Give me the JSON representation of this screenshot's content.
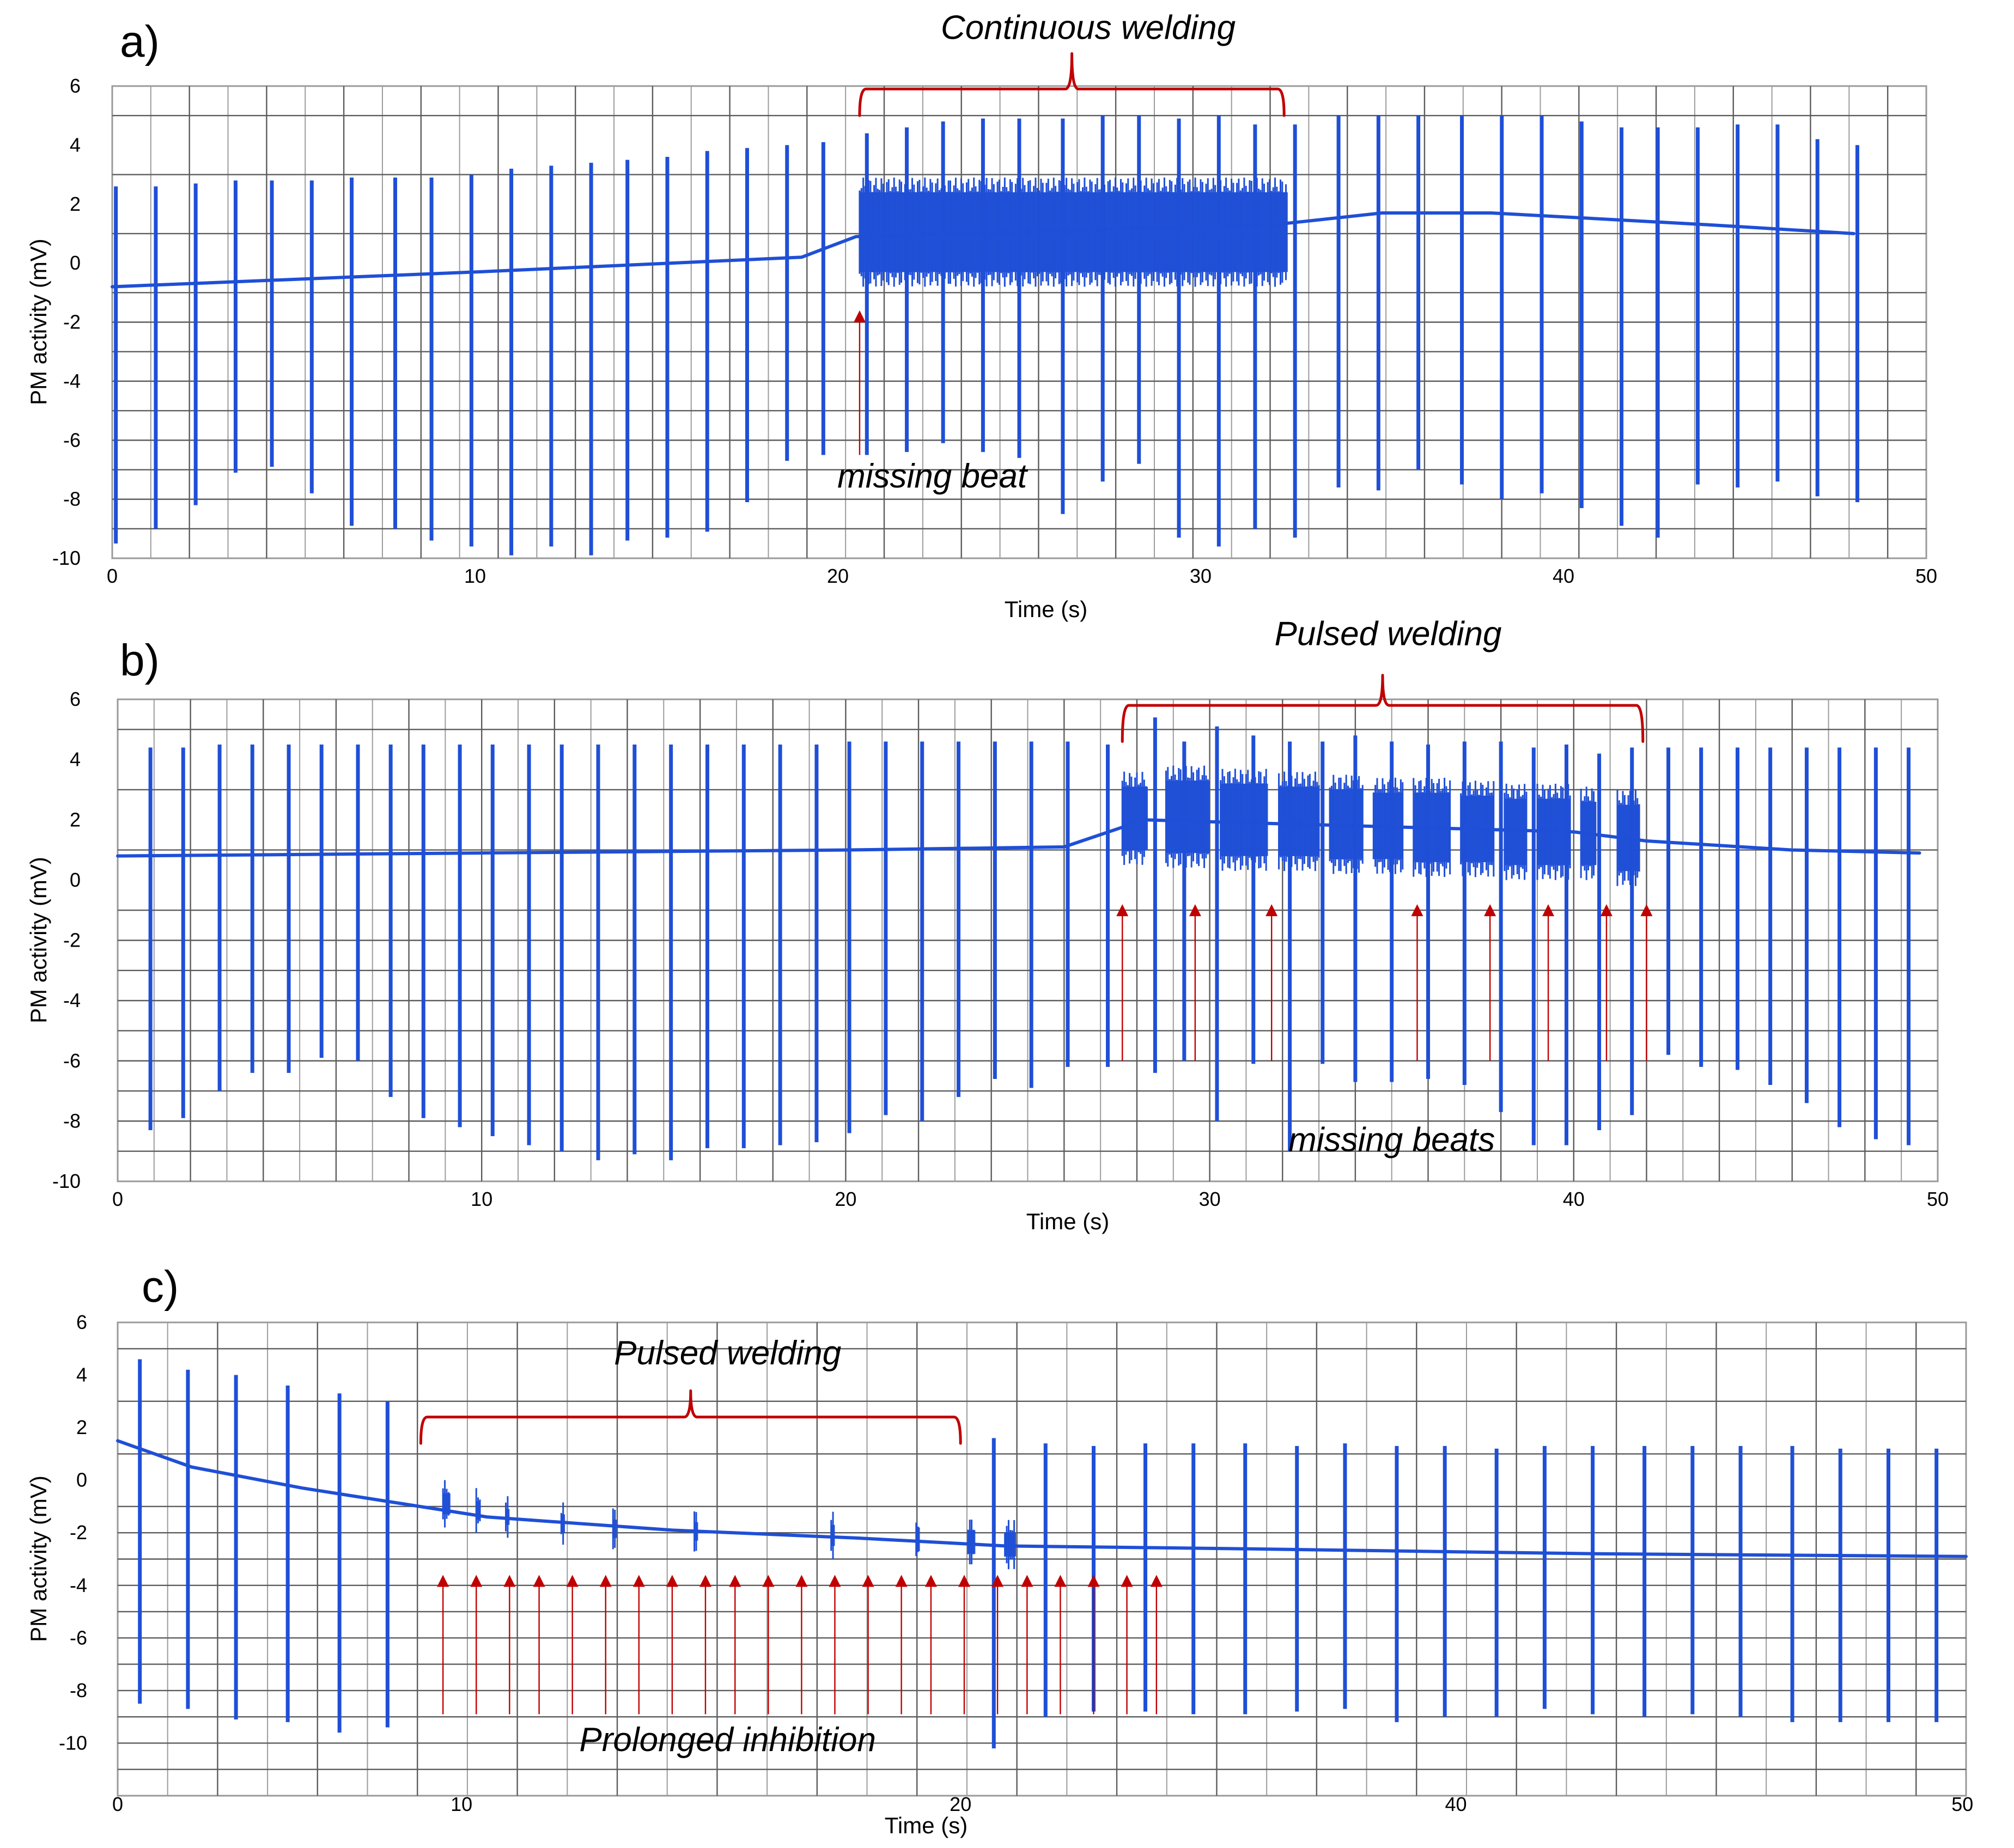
{
  "figure": {
    "style": {
      "trace_color": "#1F4FD6",
      "annotation_color": "#C00000"
    },
    "axis_common": {
      "ylabel": "PM activity (mV)",
      "xlabel": "Time (s)"
    }
  },
  "chart_data": [
    {
      "panel": "a)",
      "type": "line",
      "xlabel": "Time (s)",
      "ylabel": "PM activity (mV)",
      "xlim": [
        0,
        50
      ],
      "ylim": [
        -10,
        6
      ],
      "xticks": [
        0,
        10,
        20,
        30,
        40,
        50
      ],
      "yticks": [
        6,
        4,
        2,
        0,
        -2,
        -4,
        -6,
        -8,
        -10
      ],
      "vertical_grid_count": 47,
      "horizontal_grid": [
        5,
        3,
        1,
        -1,
        -2,
        -3,
        -4,
        -5,
        -6,
        -7,
        -8,
        -9
      ],
      "baseline": [
        [
          0,
          -0.8
        ],
        [
          10,
          -0.3
        ],
        [
          19,
          0.2
        ],
        [
          20.5,
          0.9
        ],
        [
          26,
          1.1
        ],
        [
          32,
          1.3
        ],
        [
          35,
          1.7
        ],
        [
          38,
          1.7
        ],
        [
          44,
          1.3
        ],
        [
          48,
          1.0
        ]
      ],
      "beats": [
        [
          0.1,
          2.6,
          -9.5
        ],
        [
          1.2,
          2.6,
          -9.0
        ],
        [
          2.3,
          2.7,
          -8.2
        ],
        [
          3.4,
          2.8,
          -7.1
        ],
        [
          4.4,
          2.8,
          -6.9
        ],
        [
          5.5,
          2.8,
          -7.8
        ],
        [
          6.6,
          2.9,
          -8.9
        ],
        [
          7.8,
          2.9,
          -9.0
        ],
        [
          8.8,
          2.9,
          -9.4
        ],
        [
          9.9,
          3.0,
          -9.6
        ],
        [
          11.0,
          3.2,
          -9.9
        ],
        [
          12.1,
          3.3,
          -9.6
        ],
        [
          13.2,
          3.4,
          -9.9
        ],
        [
          14.2,
          3.5,
          -9.4
        ],
        [
          15.3,
          3.6,
          -9.3
        ],
        [
          16.4,
          3.8,
          -9.1
        ],
        [
          17.5,
          3.9,
          -8.1
        ],
        [
          18.6,
          4.0,
          -6.7
        ],
        [
          19.6,
          4.1,
          -6.5
        ],
        [
          20.8,
          4.4,
          -6.5
        ],
        [
          21.9,
          4.6,
          -6.4
        ],
        [
          22.9,
          4.8,
          -6.1
        ],
        [
          24.0,
          4.9,
          -6.4
        ],
        [
          25.0,
          4.9,
          -6.6
        ],
        [
          26.2,
          4.9,
          -8.5
        ],
        [
          27.3,
          5.0,
          -7.4
        ],
        [
          28.3,
          5.0,
          -6.8
        ],
        [
          29.4,
          4.9,
          -9.3
        ],
        [
          30.5,
          5.0,
          -9.6
        ],
        [
          31.5,
          4.7,
          -9.0
        ],
        [
          32.6,
          4.7,
          -9.3
        ],
        [
          33.8,
          5.0,
          -7.6
        ],
        [
          34.9,
          5.0,
          -7.7
        ],
        [
          36.0,
          5.0,
          -7.0
        ],
        [
          37.2,
          5.0,
          -7.5
        ],
        [
          38.3,
          5.0,
          -8.0
        ],
        [
          39.4,
          5.0,
          -7.8
        ],
        [
          40.5,
          4.8,
          -8.3
        ],
        [
          41.6,
          4.6,
          -8.9
        ],
        [
          42.6,
          4.6,
          -9.3
        ],
        [
          43.7,
          4.6,
          -7.5
        ],
        [
          44.8,
          4.7,
          -7.6
        ],
        [
          45.9,
          4.7,
          -7.4
        ],
        [
          47.0,
          4.2,
          -7.9
        ],
        [
          48.1,
          4.0,
          -8.1
        ]
      ],
      "bursts": [
        {
          "start": 20.6,
          "end": 32.4,
          "high": 2.4,
          "low": -0.3,
          "spacing": 0.05
        }
      ],
      "annotations": [
        {
          "text": "Continuous welding",
          "x": 26.9,
          "y": 7.6,
          "role": "label"
        },
        {
          "text": "missing beat",
          "x": 22.6,
          "y": -7.6,
          "role": "label"
        }
      ],
      "brackets": [
        {
          "x_start": 20.6,
          "x_end": 32.3,
          "y": 5.9,
          "height": 0.9,
          "tip": 1.2
        }
      ],
      "arrows": [
        {
          "x": 20.6,
          "y_from": -6.5,
          "y_to": -1.6
        }
      ]
    },
    {
      "panel": "b)",
      "type": "line",
      "xlabel": "Time (s)",
      "ylabel": "PM activity (mV)",
      "xlim": [
        0,
        50
      ],
      "ylim": [
        -10,
        6
      ],
      "xticks": [
        0,
        10,
        20,
        30,
        40,
        50
      ],
      "yticks": [
        6,
        4,
        2,
        0,
        -2,
        -4,
        -6,
        -8,
        -10
      ],
      "vertical_grid_count": 50,
      "horizontal_grid": [
        5,
        3,
        1,
        -1,
        -2,
        -3,
        -4,
        -5,
        -6,
        -7,
        -8,
        -9
      ],
      "baseline": [
        [
          0,
          0.8
        ],
        [
          10,
          0.9
        ],
        [
          20,
          1.0
        ],
        [
          26,
          1.1
        ],
        [
          28.2,
          2.0
        ],
        [
          34,
          1.8
        ],
        [
          40,
          1.6
        ],
        [
          42,
          1.3
        ],
        [
          46,
          1.0
        ],
        [
          49.5,
          0.9
        ]
      ],
      "beats": [
        [
          0.9,
          4.4,
          -8.3
        ],
        [
          1.8,
          4.4,
          -7.9
        ],
        [
          2.8,
          4.5,
          -7.0
        ],
        [
          3.7,
          4.5,
          -6.4
        ],
        [
          4.7,
          4.5,
          -6.4
        ],
        [
          5.6,
          4.5,
          -5.9
        ],
        [
          6.6,
          4.5,
          -6.0
        ],
        [
          7.5,
          4.5,
          -7.2
        ],
        [
          8.4,
          4.5,
          -7.9
        ],
        [
          9.4,
          4.5,
          -8.2
        ],
        [
          10.3,
          4.5,
          -8.5
        ],
        [
          11.3,
          4.5,
          -8.8
        ],
        [
          12.2,
          4.5,
          -9.0
        ],
        [
          13.2,
          4.5,
          -9.3
        ],
        [
          14.2,
          4.5,
          -9.1
        ],
        [
          15.2,
          4.5,
          -9.3
        ],
        [
          16.2,
          4.5,
          -8.9
        ],
        [
          17.2,
          4.5,
          -8.9
        ],
        [
          18.2,
          4.5,
          -8.8
        ],
        [
          19.2,
          4.5,
          -8.7
        ],
        [
          20.1,
          4.6,
          -8.4
        ],
        [
          21.1,
          4.6,
          -7.8
        ],
        [
          22.1,
          4.6,
          -8.0
        ],
        [
          23.1,
          4.6,
          -7.2
        ],
        [
          24.1,
          4.6,
          -6.6
        ],
        [
          25.1,
          4.6,
          -6.9
        ],
        [
          26.1,
          4.6,
          -6.2
        ],
        [
          27.2,
          4.5,
          -6.2
        ],
        [
          28.5,
          5.4,
          -6.4
        ],
        [
          29.3,
          4.6,
          -6.0
        ],
        [
          30.2,
          5.1,
          -8.0
        ],
        [
          31.2,
          4.8,
          -6.1
        ],
        [
          32.2,
          4.6,
          -9.0
        ],
        [
          33.1,
          4.6,
          -6.1
        ],
        [
          34.0,
          4.8,
          -6.7
        ],
        [
          35.0,
          4.6,
          -6.7
        ],
        [
          36.0,
          4.5,
          -6.6
        ],
        [
          37.0,
          4.6,
          -6.8
        ],
        [
          38.0,
          4.6,
          -7.7
        ],
        [
          38.9,
          4.4,
          -8.8
        ],
        [
          39.8,
          4.5,
          -8.8
        ],
        [
          40.7,
          4.2,
          -8.3
        ],
        [
          41.6,
          4.4,
          -7.8
        ],
        [
          42.6,
          4.4,
          -5.8
        ],
        [
          43.5,
          4.4,
          -6.2
        ],
        [
          44.5,
          4.4,
          -6.3
        ],
        [
          45.4,
          4.4,
          -6.8
        ],
        [
          46.4,
          4.4,
          -7.4
        ],
        [
          47.3,
          4.4,
          -8.2
        ],
        [
          48.3,
          4.4,
          -8.6
        ],
        [
          49.2,
          4.4,
          -8.8
        ]
      ],
      "bursts": [
        {
          "start": 27.6,
          "end": 28.3,
          "high": 3.1,
          "low": 1.0,
          "spacing": 0.05
        },
        {
          "start": 28.8,
          "end": 30.0,
          "high": 3.3,
          "low": 0.9,
          "spacing": 0.05
        },
        {
          "start": 30.3,
          "end": 31.6,
          "high": 3.2,
          "low": 0.8,
          "spacing": 0.05
        },
        {
          "start": 31.9,
          "end": 33.0,
          "high": 3.1,
          "low": 0.8,
          "spacing": 0.05
        },
        {
          "start": 33.3,
          "end": 34.2,
          "high": 3.0,
          "low": 0.7,
          "spacing": 0.05
        },
        {
          "start": 34.5,
          "end": 35.3,
          "high": 2.9,
          "low": 0.7,
          "spacing": 0.05
        },
        {
          "start": 35.6,
          "end": 36.6,
          "high": 2.9,
          "low": 0.6,
          "spacing": 0.05
        },
        {
          "start": 36.9,
          "end": 37.8,
          "high": 2.8,
          "low": 0.6,
          "spacing": 0.05
        },
        {
          "start": 38.1,
          "end": 38.7,
          "high": 2.7,
          "low": 0.5,
          "spacing": 0.05
        },
        {
          "start": 39.0,
          "end": 39.9,
          "high": 2.7,
          "low": 0.5,
          "spacing": 0.05
        },
        {
          "start": 40.2,
          "end": 40.6,
          "high": 2.6,
          "low": 0.5,
          "spacing": 0.05
        },
        {
          "start": 41.2,
          "end": 41.8,
          "high": 2.5,
          "low": 0.3,
          "spacing": 0.05
        }
      ],
      "annotations": [
        {
          "text": "Pulsed welding",
          "x": 34.9,
          "y": 7.8,
          "role": "label"
        },
        {
          "text": "missing beats",
          "x": 35.0,
          "y": -9.0,
          "role": "label"
        }
      ],
      "brackets": [
        {
          "x_start": 27.6,
          "x_end": 41.9,
          "y": 5.8,
          "height": 1.2,
          "tip": 1.0
        }
      ],
      "arrows": [
        {
          "x": 27.6,
          "y_from": -6.0,
          "y_to": -0.8
        },
        {
          "x": 29.6,
          "y_from": -6.0,
          "y_to": -0.8
        },
        {
          "x": 31.7,
          "y_from": -6.0,
          "y_to": -0.8
        },
        {
          "x": 35.7,
          "y_from": -6.0,
          "y_to": -0.8
        },
        {
          "x": 37.7,
          "y_from": -6.0,
          "y_to": -0.8
        },
        {
          "x": 39.3,
          "y_from": -6.0,
          "y_to": -0.8
        },
        {
          "x": 40.9,
          "y_from": -6.0,
          "y_to": -0.8
        },
        {
          "x": 42.0,
          "y_from": -6.0,
          "y_to": -0.8
        }
      ]
    },
    {
      "panel": "c)",
      "type": "line",
      "xlabel": "Time (s)",
      "ylabel": "PM activity (mV)",
      "xlim": [
        0,
        50
      ],
      "ylim": [
        -12,
        6
      ],
      "xticks": [
        0,
        10,
        20,
        40,
        50
      ],
      "xtick_labels": [
        "0",
        "10",
        "20",
        "40",
        "50"
      ],
      "xtick_positions": [
        0,
        9.3,
        22.8,
        36.2,
        49.9
      ],
      "yticks": [
        6,
        4,
        2,
        0,
        -2,
        -4,
        -6,
        -8,
        -10
      ],
      "vertical_grid_count": 37,
      "horizontal_grid": [
        5,
        3,
        1,
        -1,
        -2,
        -3,
        -4,
        -5,
        -6,
        -7,
        -8,
        -9,
        -10,
        -11
      ],
      "baseline": [
        [
          0,
          1.5
        ],
        [
          2,
          0.5
        ],
        [
          5,
          -0.3
        ],
        [
          10,
          -1.4
        ],
        [
          15,
          -1.9
        ],
        [
          20,
          -2.2
        ],
        [
          24,
          -2.5
        ],
        [
          30,
          -2.6
        ],
        [
          40,
          -2.8
        ],
        [
          50,
          -2.9
        ]
      ],
      "beats": [
        [
          0.6,
          4.6,
          -8.5
        ],
        [
          1.9,
          4.2,
          -8.7
        ],
        [
          3.2,
          4.0,
          -9.1
        ],
        [
          4.6,
          3.6,
          -9.2
        ],
        [
          6.0,
          3.3,
          -9.6
        ],
        [
          7.3,
          3.0,
          -9.4
        ],
        [
          25.1,
          1.4,
          -9.0
        ],
        [
          26.4,
          1.3,
          -8.8
        ],
        [
          27.8,
          1.4,
          -8.8
        ],
        [
          29.1,
          1.4,
          -8.9
        ],
        [
          30.5,
          1.4,
          -8.9
        ],
        [
          31.9,
          1.3,
          -8.8
        ],
        [
          33.2,
          1.4,
          -8.7
        ],
        [
          34.6,
          1.3,
          -9.2
        ],
        [
          35.9,
          1.3,
          -9.0
        ],
        [
          37.3,
          1.2,
          -9.0
        ],
        [
          38.6,
          1.3,
          -8.7
        ],
        [
          39.9,
          1.3,
          -8.9
        ],
        [
          41.3,
          1.3,
          -9.0
        ],
        [
          42.6,
          1.3,
          -8.9
        ],
        [
          43.9,
          1.3,
          -9.0
        ],
        [
          45.3,
          1.3,
          -9.2
        ],
        [
          46.6,
          1.2,
          -9.2
        ],
        [
          47.9,
          1.2,
          -9.2
        ],
        [
          49.2,
          1.2,
          -9.2
        ],
        [
          23.7,
          1.6,
          -10.2
        ]
      ],
      "bursts": [
        {
          "start": 8.8,
          "end": 9.0,
          "high": -0.5,
          "low": -1.3,
          "spacing": 0.05
        },
        {
          "start": 9.7,
          "end": 9.8,
          "high": -0.8,
          "low": -1.5,
          "spacing": 0.05
        },
        {
          "start": 10.5,
          "end": 10.6,
          "high": -1.1,
          "low": -1.7,
          "spacing": 0.05
        },
        {
          "start": 12.0,
          "end": 12.1,
          "high": -1.3,
          "low": -2.0,
          "spacing": 0.05
        },
        {
          "start": 13.4,
          "end": 13.5,
          "high": -1.5,
          "low": -2.2,
          "spacing": 0.05
        },
        {
          "start": 15.6,
          "end": 15.7,
          "high": -1.6,
          "low": -2.3,
          "spacing": 0.05
        },
        {
          "start": 19.3,
          "end": 19.4,
          "high": -1.7,
          "low": -2.5,
          "spacing": 0.05
        },
        {
          "start": 21.6,
          "end": 21.7,
          "high": -1.8,
          "low": -2.7,
          "spacing": 0.05
        },
        {
          "start": 23.0,
          "end": 23.2,
          "high": -1.9,
          "low": -2.8,
          "spacing": 0.05
        },
        {
          "start": 24.0,
          "end": 24.3,
          "high": -2.0,
          "low": -2.9,
          "spacing": 0.05
        }
      ],
      "annotations": [
        {
          "text": "Pulsed welding",
          "x": 16.5,
          "y": 4.4,
          "role": "label"
        },
        {
          "text": "Prolonged inhibition",
          "x": 16.5,
          "y": -10.3,
          "role": "label"
        }
      ],
      "brackets": [
        {
          "x_start": 8.2,
          "x_end": 22.8,
          "y": 2.4,
          "height": 1.0,
          "tip": 1.0
        }
      ],
      "arrows": [
        {
          "x": 8.8,
          "y_from": -8.9,
          "y_to": -3.6
        },
        {
          "x": 9.7,
          "y_from": -8.9,
          "y_to": -3.6
        },
        {
          "x": 10.6,
          "y_from": -8.9,
          "y_to": -3.6
        },
        {
          "x": 11.4,
          "y_from": -8.9,
          "y_to": -3.6
        },
        {
          "x": 12.3,
          "y_from": -8.9,
          "y_to": -3.6
        },
        {
          "x": 13.2,
          "y_from": -8.9,
          "y_to": -3.6
        },
        {
          "x": 14.1,
          "y_from": -8.9,
          "y_to": -3.6
        },
        {
          "x": 15.0,
          "y_from": -8.9,
          "y_to": -3.6
        },
        {
          "x": 15.9,
          "y_from": -8.9,
          "y_to": -3.6
        },
        {
          "x": 16.7,
          "y_from": -8.9,
          "y_to": -3.6
        },
        {
          "x": 17.6,
          "y_from": -8.9,
          "y_to": -3.6
        },
        {
          "x": 18.5,
          "y_from": -8.9,
          "y_to": -3.6
        },
        {
          "x": 19.4,
          "y_from": -8.9,
          "y_to": -3.6
        },
        {
          "x": 20.3,
          "y_from": -8.9,
          "y_to": -3.6
        },
        {
          "x": 21.2,
          "y_from": -8.9,
          "y_to": -3.6
        },
        {
          "x": 22.0,
          "y_from": -8.9,
          "y_to": -3.6
        },
        {
          "x": 22.9,
          "y_from": -8.9,
          "y_to": -3.6
        },
        {
          "x": 23.8,
          "y_from": -8.9,
          "y_to": -3.6
        },
        {
          "x": 24.6,
          "y_from": -8.9,
          "y_to": -3.6
        },
        {
          "x": 25.5,
          "y_from": -8.9,
          "y_to": -3.6
        },
        {
          "x": 26.4,
          "y_from": -8.9,
          "y_to": -3.6
        },
        {
          "x": 27.3,
          "y_from": -8.9,
          "y_to": -3.6
        },
        {
          "x": 28.1,
          "y_from": -8.9,
          "y_to": -3.6
        }
      ]
    }
  ]
}
